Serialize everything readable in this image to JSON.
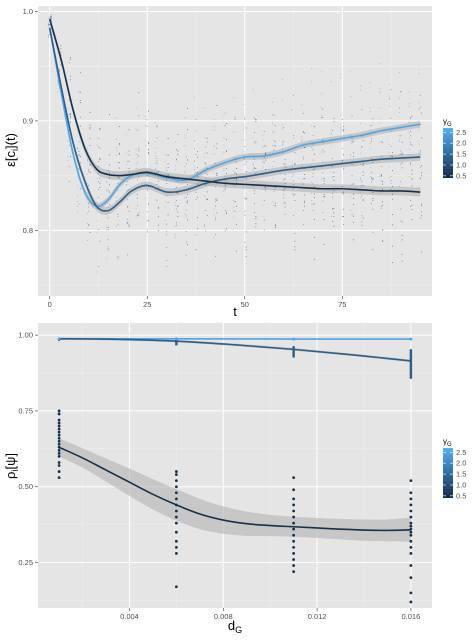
{
  "colors": {
    "panel": "#e5e5e5",
    "grid_major": "#ffffff",
    "grid_minor": "#f0f0f0",
    "band": "#b3b3b3",
    "low": "#132b43",
    "high": "#56b1f7"
  },
  "chart_data": [
    {
      "type": "line",
      "xlabel": "t",
      "ylabel": "ε[c",
      "ylabel_sub": "i",
      "ylabel_suffix": "](t)",
      "xlim": [
        -3,
        98
      ],
      "ylim": [
        0.74,
        1.005
      ],
      "xticks": [
        0,
        25,
        50,
        75
      ],
      "xtick_labels": [
        "0",
        "25",
        "50",
        "75"
      ],
      "yticks": [
        0.8,
        0.9,
        1.0
      ],
      "ytick_labels": [
        "0.8",
        "0.9",
        "1.0"
      ],
      "grid": true,
      "legend": {
        "title": "γ",
        "title_sub": "G",
        "placement": "right",
        "ticks": [
          0.5,
          1.0,
          1.5,
          2.0,
          2.5
        ],
        "tick_labels": [
          "0.5",
          "1.0",
          "1.5",
          "2.0",
          "2.5"
        ],
        "range": [
          0.4,
          2.7
        ]
      },
      "series": [
        {
          "gamma": 2.5,
          "x": [
            0,
            3,
            6,
            9,
            12,
            15,
            18,
            21,
            25,
            30,
            35,
            40,
            45,
            50,
            55,
            60,
            65,
            70,
            75,
            80,
            85,
            90,
            95
          ],
          "y": [
            0.985,
            0.925,
            0.87,
            0.835,
            0.822,
            0.828,
            0.842,
            0.85,
            0.852,
            0.848,
            0.846,
            0.855,
            0.862,
            0.867,
            0.868,
            0.872,
            0.878,
            0.881,
            0.884,
            0.887,
            0.891,
            0.894,
            0.897
          ],
          "ci": 0.003
        },
        {
          "gamma": 1.3,
          "x": [
            0,
            3,
            6,
            9,
            12,
            15,
            18,
            21,
            25,
            30,
            35,
            40,
            45,
            50,
            55,
            60,
            65,
            70,
            75,
            80,
            85,
            90,
            95
          ],
          "y": [
            0.985,
            0.93,
            0.88,
            0.845,
            0.822,
            0.818,
            0.826,
            0.836,
            0.841,
            0.835,
            0.837,
            0.843,
            0.847,
            0.849,
            0.852,
            0.855,
            0.857,
            0.859,
            0.861,
            0.863,
            0.865,
            0.866,
            0.867
          ],
          "ci": 0.0035
        },
        {
          "gamma": 0.5,
          "x": [
            0,
            3,
            6,
            9,
            12,
            15,
            18,
            21,
            25,
            30,
            35,
            40,
            45,
            50,
            55,
            60,
            65,
            70,
            75,
            80,
            85,
            90,
            95
          ],
          "y": [
            0.993,
            0.955,
            0.91,
            0.875,
            0.856,
            0.851,
            0.85,
            0.851,
            0.853,
            0.849,
            0.847,
            0.845,
            0.843,
            0.842,
            0.841,
            0.84,
            0.839,
            0.838,
            0.838,
            0.837,
            0.836,
            0.836,
            0.835
          ],
          "ci": 0.004
        }
      ]
    },
    {
      "type": "line",
      "xlabel": "d",
      "xlabel_sub": "G",
      "ylabel": "ρ",
      "ylabel_sub": "i",
      "ylabel_suffix": "[ψ]",
      "xlim": [
        0.0001,
        0.0169
      ],
      "ylim": [
        0.1,
        1.04
      ],
      "xticks": [
        0.004,
        0.008,
        0.012,
        0.016
      ],
      "xtick_labels": [
        "0.004",
        "0.008",
        "0.012",
        "0.016"
      ],
      "yticks": [
        0.25,
        0.5,
        0.75,
        1.0
      ],
      "ytick_labels": [
        "0.25",
        "0.50",
        "0.75",
        "1.00"
      ],
      "grid": true,
      "legend": {
        "title": "γ",
        "title_sub": "G",
        "placement": "right",
        "ticks": [
          0.5,
          1.0,
          1.5,
          2.0,
          2.5
        ],
        "tick_labels": [
          "0.5",
          "1.0",
          "1.5",
          "2.0",
          "2.5"
        ],
        "range": [
          0.4,
          2.7
        ]
      },
      "series": [
        {
          "gamma": 2.5,
          "x": [
            0.001,
            0.006,
            0.011,
            0.016
          ],
          "y": [
            0.988,
            0.988,
            0.987,
            0.987
          ],
          "ci": 0.002
        },
        {
          "gamma": 1.3,
          "x": [
            0.001,
            0.0035,
            0.006,
            0.0085,
            0.011,
            0.0135,
            0.016
          ],
          "y": [
            0.988,
            0.986,
            0.98,
            0.968,
            0.953,
            0.935,
            0.915
          ],
          "ci": 0.004
        },
        {
          "gamma": 0.5,
          "x": [
            0.001,
            0.002,
            0.003,
            0.004,
            0.005,
            0.006,
            0.007,
            0.008,
            0.009,
            0.01,
            0.011,
            0.012,
            0.013,
            0.014,
            0.015,
            0.016
          ],
          "y": [
            0.63,
            0.595,
            0.555,
            0.515,
            0.475,
            0.44,
            0.41,
            0.39,
            0.378,
            0.372,
            0.368,
            0.364,
            0.36,
            0.357,
            0.356,
            0.358
          ],
          "ci": [
            0.03,
            0.032,
            0.038,
            0.045,
            0.05,
            0.052,
            0.05,
            0.045,
            0.04,
            0.035,
            0.033,
            0.033,
            0.034,
            0.035,
            0.036,
            0.04
          ]
        }
      ],
      "points": {
        "x": [
          0.001,
          0.006,
          0.011,
          0.016
        ],
        "gamma2_5": [
          0.988,
          0.988,
          0.987,
          0.987
        ],
        "gamma1_3": [
          [
            0.985,
            0.99
          ],
          [
            0.97,
            0.985
          ],
          [
            0.93,
            0.965
          ],
          [
            0.86,
            0.95
          ]
        ],
        "gamma0_5": [
          [
            0.53,
            0.55,
            0.57,
            0.58,
            0.6,
            0.61,
            0.62,
            0.63,
            0.64,
            0.65,
            0.66,
            0.67,
            0.68,
            0.69,
            0.7,
            0.71,
            0.72,
            0.74,
            0.75
          ],
          [
            0.17,
            0.28,
            0.3,
            0.32,
            0.35,
            0.38,
            0.4,
            0.42,
            0.44,
            0.46,
            0.48,
            0.5,
            0.52,
            0.54,
            0.55
          ],
          [
            0.22,
            0.24,
            0.26,
            0.28,
            0.3,
            0.32,
            0.34,
            0.36,
            0.38,
            0.4,
            0.42,
            0.44,
            0.46,
            0.49,
            0.53
          ],
          [
            0.12,
            0.15,
            0.2,
            0.24,
            0.28,
            0.3,
            0.32,
            0.34,
            0.35,
            0.36,
            0.37,
            0.38,
            0.4,
            0.42,
            0.44,
            0.46,
            0.48,
            0.52
          ]
        ]
      }
    }
  ]
}
